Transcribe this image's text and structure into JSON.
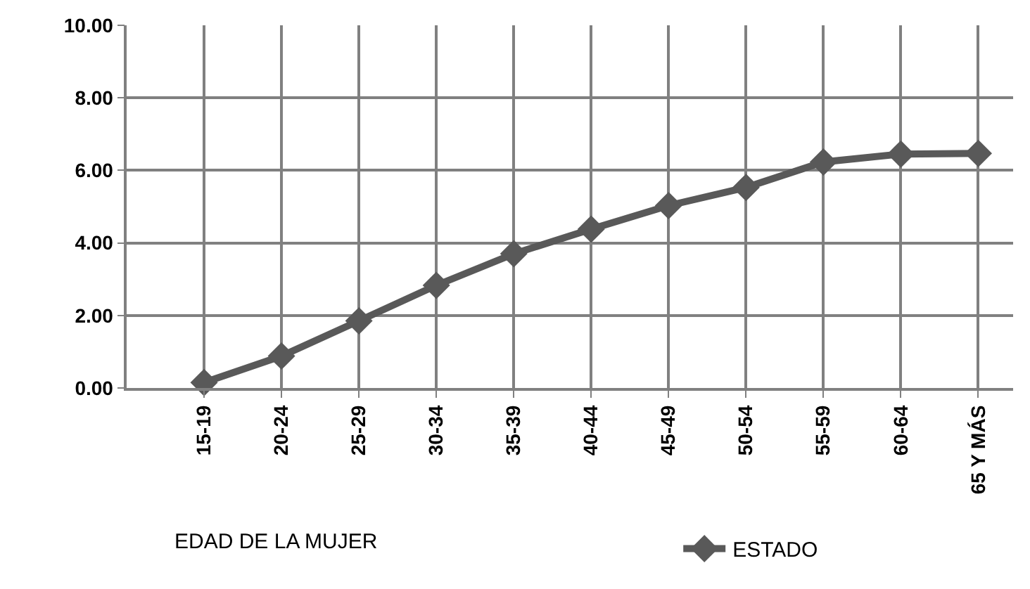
{
  "chart_data": {
    "type": "line",
    "xlabel": "EDAD DE LA MUJER",
    "categories": [
      "15-19",
      "20-24",
      "25-29",
      "30-34",
      "35-39",
      "40-44",
      "45-49",
      "50-54",
      "55-59",
      "60-64",
      "65 Y MÁS"
    ],
    "series": [
      {
        "name": "ESTADO",
        "color": "#595959",
        "values": [
          0.15,
          0.88,
          1.85,
          2.83,
          3.7,
          4.38,
          5.03,
          5.53,
          6.23,
          6.45,
          6.47
        ]
      }
    ],
    "ylim": [
      0,
      10
    ],
    "yticks": [
      {
        "value": 0,
        "label": "0.00"
      },
      {
        "value": 2,
        "label": "2.00"
      },
      {
        "value": 4,
        "label": "4.00"
      },
      {
        "value": 6,
        "label": "6.00"
      },
      {
        "value": 8,
        "label": "8.00"
      },
      {
        "value": 10,
        "label": "10.00"
      }
    ],
    "grid": true,
    "legend": "bottom right",
    "marker": "diamond",
    "line_style": "solid"
  }
}
